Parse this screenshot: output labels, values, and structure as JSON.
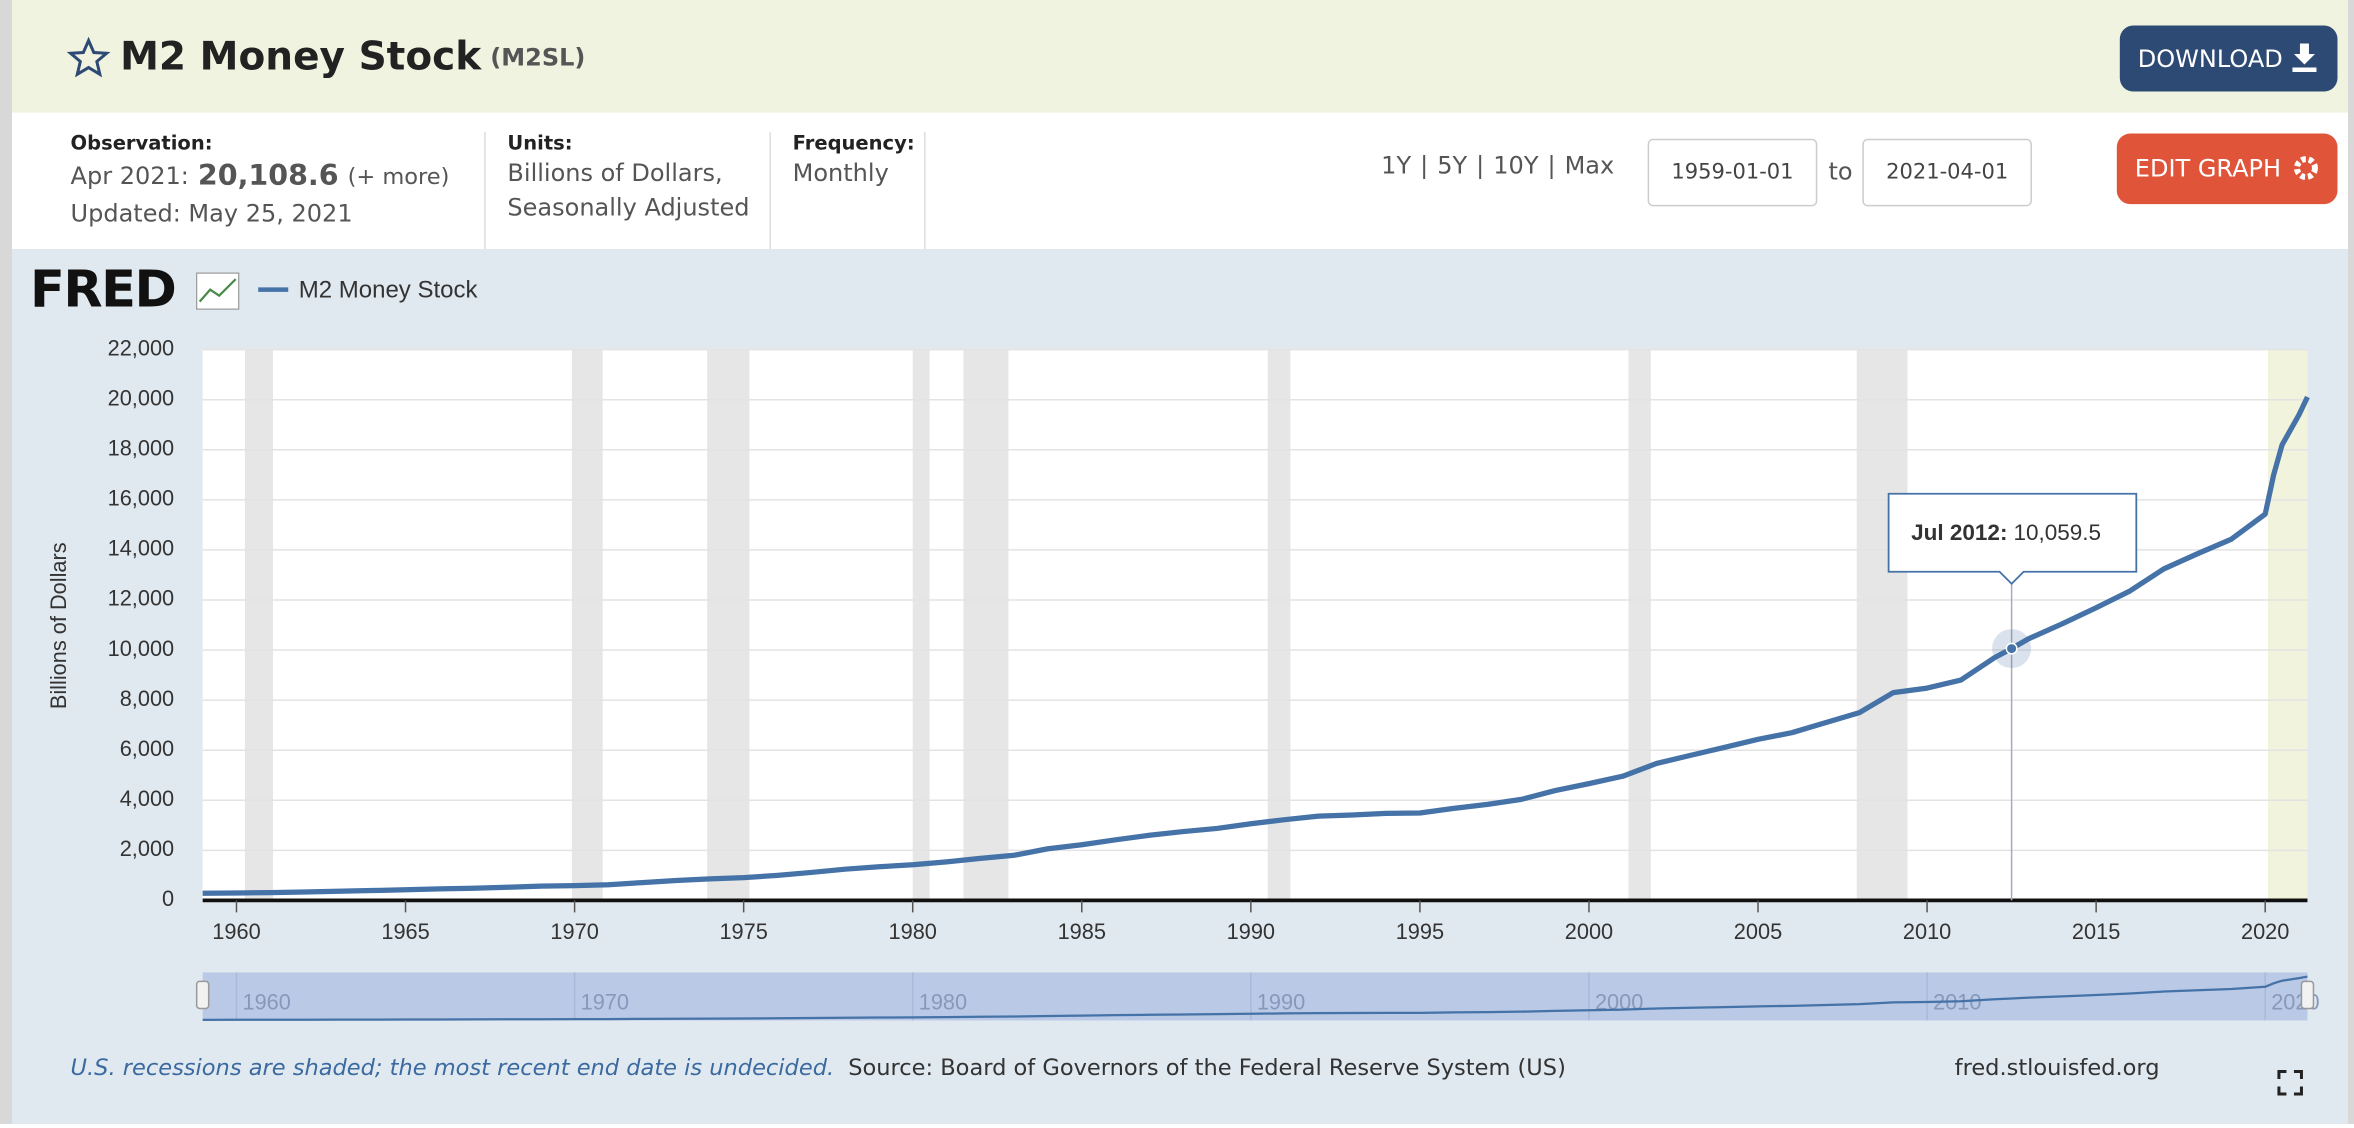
{
  "header": {
    "title": "M2 Money Stock",
    "series_id": "(M2SL)",
    "download": "DOWNLOAD"
  },
  "info": {
    "observation_label": "Observation:",
    "observation_date": "Apr 2021:",
    "observation_value": "20,108.6",
    "more": "(+ more)",
    "updated": "Updated: May 25, 2021",
    "units_label": "Units:",
    "units": [
      "Billions of Dollars,",
      "Seasonally Adjusted"
    ],
    "frequency_label": "Frequency:",
    "frequency": "Monthly",
    "ranges": [
      "1Y",
      "5Y",
      "10Y",
      "Max"
    ],
    "range_separator": "|",
    "start_date": "1959-01-01",
    "to": "to",
    "end_date": "2021-04-01",
    "edit": "EDIT GRAPH"
  },
  "chart_data": {
    "type": "line",
    "logo": "FRED",
    "y_label": "Billions of Dollars",
    "x": [
      1959,
      1960,
      1961,
      1962,
      1963,
      1964,
      1965,
      1966,
      1967,
      1968,
      1969,
      1970,
      1971,
      1972,
      1973,
      1974,
      1975,
      1976,
      1977,
      1978,
      1979,
      1980,
      1981,
      1982,
      1983,
      1984,
      1985,
      1986,
      1987,
      1988,
      1989,
      1990,
      1991,
      1992,
      1993,
      1994,
      1995,
      1996,
      1997,
      1998,
      1999,
      2000,
      2001,
      2002,
      2003,
      2004,
      2005,
      2006,
      2007,
      2008,
      2009,
      2010,
      2011,
      2012,
      2012.5,
      2013,
      2014,
      2015,
      2016,
      2017,
      2018,
      2019,
      2020,
      2020.25,
      2020.5,
      2021,
      2021.25
    ],
    "series": [
      {
        "name": "M2 Money Stock",
        "color": "#4572a7",
        "values": [
          287,
          298,
          313,
          335,
          363,
          393,
          425,
          460,
          483,
          526,
          571,
          590,
          627,
          712,
          793,
          859,
          910,
          1000,
          1117,
          1247,
          1344,
          1425,
          1540,
          1677,
          1804,
          2063,
          2222,
          2420,
          2603,
          2750,
          2875,
          3062,
          3224,
          3365,
          3413,
          3475,
          3492,
          3676,
          3837,
          4036,
          4387,
          4665,
          4960,
          5470,
          5793,
          6111,
          6434,
          6700,
          7100,
          7500,
          8300,
          8480,
          8800,
          9700,
          10059.5,
          10450,
          11050,
          11690,
          12360,
          13240,
          13850,
          14430,
          15430,
          17000,
          18200,
          19400,
          20108.6
        ]
      }
    ],
    "xlim": [
      1959,
      2021.25
    ],
    "xticks": [
      1960,
      1965,
      1970,
      1975,
      1980,
      1985,
      1990,
      1995,
      2000,
      2005,
      2010,
      2015,
      2020
    ],
    "ylim": [
      0,
      22000
    ],
    "yticks": [
      0,
      {
        "value": 2000,
        "label": "2,000"
      },
      {
        "value": 4000,
        "label": "4,000"
      },
      {
        "value": 6000,
        "label": "6,000"
      },
      {
        "value": 8000,
        "label": "8,000"
      },
      {
        "value": 10000,
        "label": "10,000"
      },
      {
        "value": 12000,
        "label": "12,000"
      },
      {
        "value": 14000,
        "label": "14,000"
      },
      {
        "value": 16000,
        "label": "16,000"
      },
      {
        "value": 18000,
        "label": "18,000"
      },
      {
        "value": 20000,
        "label": "20,000"
      },
      {
        "value": 22000,
        "label": "22,000"
      }
    ],
    "grid": true,
    "recessions": [
      [
        1960.25,
        1961.08
      ],
      [
        1969.92,
        1970.83
      ],
      [
        1973.92,
        1975.17
      ],
      [
        1980.0,
        1980.5
      ],
      [
        1981.5,
        1982.83
      ],
      [
        1990.5,
        1991.17
      ],
      [
        2001.17,
        2001.83
      ],
      [
        2007.92,
        2009.42
      ]
    ],
    "recession_color": "#e6e6e6",
    "undecided_recession": [
      2020.08,
      2021.25
    ],
    "undecided_color": "#f2f3dc",
    "tooltip": {
      "label": "Jul 2012:",
      "x": 2012.5,
      "value": 10059.5,
      "value_label": "10,059.5"
    }
  },
  "footer": {
    "note": "U.S. recessions are shaded; the most recent end date is undecided.",
    "source": "Source: Board of Governors of the Federal Reserve System (US)",
    "site": "fred.stlouisfed.org"
  }
}
